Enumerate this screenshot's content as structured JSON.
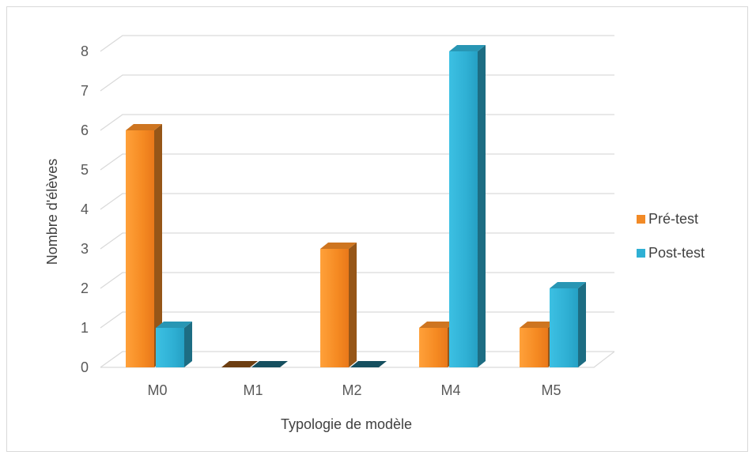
{
  "chart_data": {
    "type": "bar",
    "categories": [
      "M0",
      "M1",
      "M2",
      "M4",
      "M5"
    ],
    "series": [
      {
        "name": "Pré-test",
        "values": [
          6,
          0,
          3,
          1,
          1
        ],
        "color": "#f28a26"
      },
      {
        "name": "Post-test",
        "values": [
          1,
          0,
          0,
          8,
          2
        ],
        "color": "#2fb0d4"
      }
    ],
    "xlabel": "Typologie de modèle",
    "ylabel": "Nombre d'élèves",
    "ylim": [
      0,
      8
    ],
    "yticks": [
      0,
      1,
      2,
      3,
      4,
      5,
      6,
      7,
      8
    ],
    "grid": true,
    "legend_position": "right",
    "style": "3d-clustered-column"
  }
}
